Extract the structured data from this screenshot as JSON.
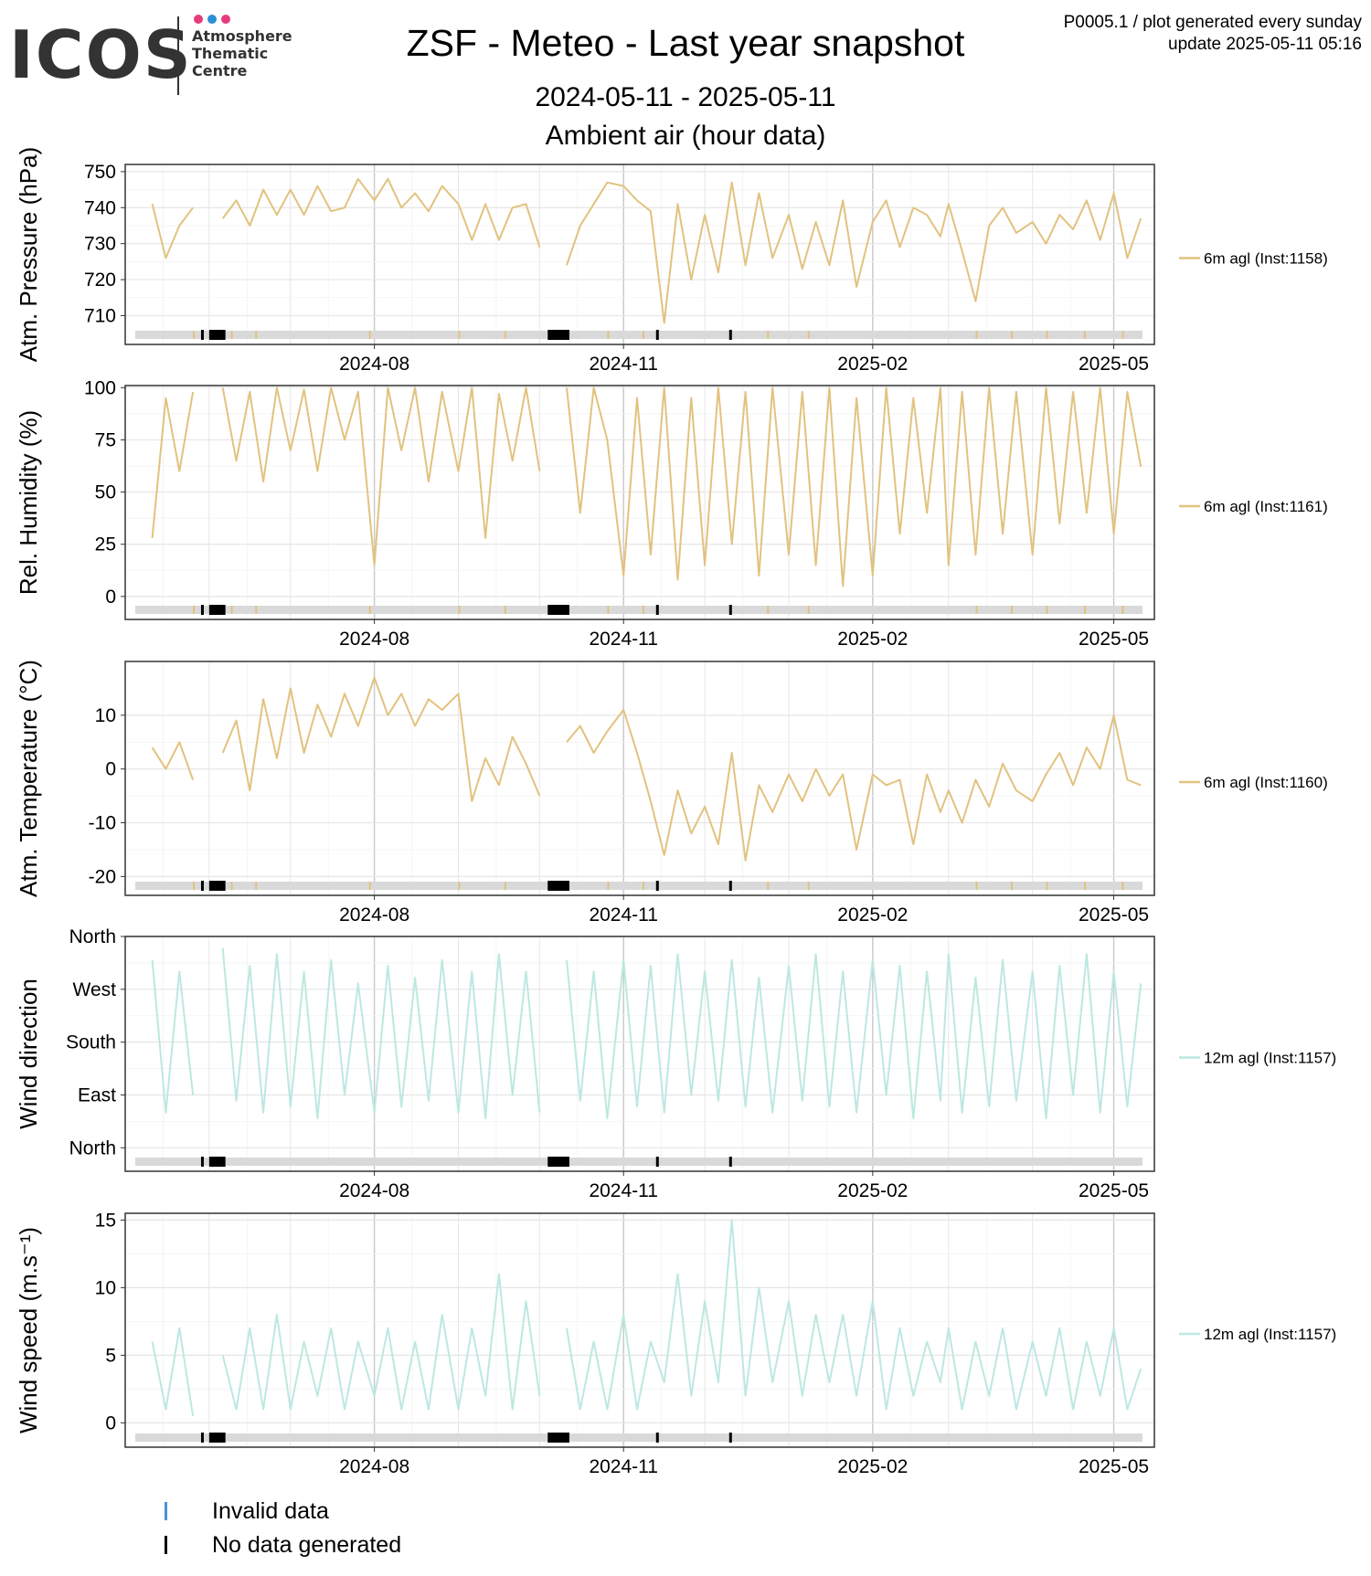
{
  "logo": {
    "word": "ICOS",
    "lines": [
      "Atmosphere",
      "Thematic",
      "Centre"
    ],
    "dot_colors": [
      "#e63b7a",
      "#2a8fd6",
      "#e63b7a"
    ]
  },
  "header": {
    "title": "ZSF - Meteo - Last year snapshot",
    "date_range": "2024-05-11 - 2025-05-11",
    "subtitle": "Ambient air (hour data)",
    "meta_line1": "P0005.1 / plot generated every sunday",
    "meta_line2": "update  2025-05-11 05:16"
  },
  "colors": {
    "sand": "#e2c27f",
    "aqua": "#bce8e1",
    "grid": "#e6e6e6",
    "grid_major": "#c8c8c8",
    "status_bg": "#d9d9d9",
    "invalid": "#4a90d9",
    "nodata": "#000000"
  },
  "legend_bottom": {
    "invalid_label": "Invalid data",
    "nodata_label": "No data generated"
  },
  "chart_data": [
    {
      "type": "line",
      "ylabel": "Atm. Pressure (hPa)",
      "x_ticks": [
        "2024-08",
        "2024-11",
        "2025-02",
        "2025-05"
      ],
      "yticks": [
        710,
        720,
        730,
        740,
        750
      ],
      "ylim": [
        702,
        752
      ],
      "color": "sand",
      "grid": true,
      "legend_position": "right",
      "series": [
        {
          "name": "6m agl (Inst:1158)",
          "x": [
            "2024-05-11",
            "2024-05-16",
            "2024-05-21",
            "2024-05-26",
            "2024-06-01",
            "2024-06-06",
            "2024-06-11",
            "2024-06-16",
            "2024-06-21",
            "2024-06-26",
            "2024-07-01",
            "2024-07-06",
            "2024-07-11",
            "2024-07-16",
            "2024-07-21",
            "2024-07-26",
            "2024-08-01",
            "2024-08-06",
            "2024-08-11",
            "2024-08-16",
            "2024-08-21",
            "2024-08-26",
            "2024-09-01",
            "2024-09-06",
            "2024-09-11",
            "2024-09-16",
            "2024-09-21",
            "2024-09-26",
            "2024-10-01",
            "2024-10-06",
            "2024-10-11",
            "2024-10-16",
            "2024-10-21",
            "2024-10-26",
            "2024-11-01",
            "2024-11-06",
            "2024-11-11",
            "2024-11-16",
            "2024-11-21",
            "2024-11-26",
            "2024-12-01",
            "2024-12-06",
            "2024-12-11",
            "2024-12-16",
            "2024-12-21",
            "2024-12-26",
            "2025-01-01",
            "2025-01-06",
            "2025-01-11",
            "2025-01-16",
            "2025-01-21",
            "2025-01-26",
            "2025-02-01",
            "2025-02-06",
            "2025-02-11",
            "2025-02-16",
            "2025-02-21",
            "2025-02-26",
            "2025-03-01",
            "2025-03-06",
            "2025-03-11",
            "2025-03-16",
            "2025-03-21",
            "2025-03-26",
            "2025-04-01",
            "2025-04-06",
            "2025-04-11",
            "2025-04-16",
            "2025-04-21",
            "2025-04-26",
            "2025-05-01",
            "2025-05-06",
            "2025-05-11"
          ],
          "values": [
            741,
            726,
            735,
            740,
            null,
            737,
            742,
            735,
            745,
            738,
            745,
            738,
            746,
            739,
            740,
            748,
            742,
            748,
            740,
            744,
            739,
            746,
            741,
            731,
            741,
            731,
            740,
            741,
            729,
            null,
            724,
            735,
            741,
            747,
            746,
            742,
            739,
            708,
            741,
            720,
            738,
            722,
            747,
            724,
            744,
            726,
            738,
            723,
            736,
            724,
            742,
            718,
            736,
            742,
            729,
            740,
            738,
            732,
            741,
            728,
            714,
            735,
            740,
            733,
            736,
            730,
            738,
            734,
            742,
            731,
            744,
            726,
            737
          ]
        }
      ]
    },
    {
      "type": "line",
      "ylabel": "Rel. Humidity (%)",
      "x_ticks": [
        "2024-08",
        "2024-11",
        "2025-02",
        "2025-05"
      ],
      "yticks": [
        0,
        25,
        50,
        75,
        100
      ],
      "ylim": [
        -11,
        101
      ],
      "color": "sand",
      "grid": true,
      "legend_position": "right",
      "series": [
        {
          "name": "6m agl (Inst:1161)",
          "x": [
            "2024-05-11",
            "2024-05-16",
            "2024-05-21",
            "2024-05-26",
            "2024-06-01",
            "2024-06-06",
            "2024-06-11",
            "2024-06-16",
            "2024-06-21",
            "2024-06-26",
            "2024-07-01",
            "2024-07-06",
            "2024-07-11",
            "2024-07-16",
            "2024-07-21",
            "2024-07-26",
            "2024-08-01",
            "2024-08-06",
            "2024-08-11",
            "2024-08-16",
            "2024-08-21",
            "2024-08-26",
            "2024-09-01",
            "2024-09-06",
            "2024-09-11",
            "2024-09-16",
            "2024-09-21",
            "2024-09-26",
            "2024-10-01",
            "2024-10-06",
            "2024-10-11",
            "2024-10-16",
            "2024-10-21",
            "2024-10-26",
            "2024-11-01",
            "2024-11-06",
            "2024-11-11",
            "2024-11-16",
            "2024-11-21",
            "2024-11-26",
            "2024-12-01",
            "2024-12-06",
            "2024-12-11",
            "2024-12-16",
            "2024-12-21",
            "2024-12-26",
            "2025-01-01",
            "2025-01-06",
            "2025-01-11",
            "2025-01-16",
            "2025-01-21",
            "2025-01-26",
            "2025-02-01",
            "2025-02-06",
            "2025-02-11",
            "2025-02-16",
            "2025-02-21",
            "2025-02-26",
            "2025-03-01",
            "2025-03-06",
            "2025-03-11",
            "2025-03-16",
            "2025-03-21",
            "2025-03-26",
            "2025-04-01",
            "2025-04-06",
            "2025-04-11",
            "2025-04-16",
            "2025-04-21",
            "2025-04-26",
            "2025-05-01",
            "2025-05-06",
            "2025-05-11"
          ],
          "values": [
            28,
            95,
            60,
            98,
            null,
            100,
            65,
            98,
            55,
            100,
            70,
            99,
            60,
            100,
            75,
            98,
            15,
            100,
            70,
            100,
            55,
            98,
            60,
            100,
            28,
            97,
            65,
            100,
            60,
            null,
            100,
            40,
            100,
            75,
            10,
            95,
            20,
            100,
            8,
            95,
            15,
            100,
            25,
            98,
            10,
            100,
            20,
            98,
            15,
            100,
            5,
            95,
            10,
            100,
            30,
            95,
            40,
            100,
            15,
            98,
            20,
            100,
            30,
            98,
            20,
            100,
            35,
            98,
            40,
            100,
            30,
            98,
            62
          ]
        }
      ]
    },
    {
      "type": "line",
      "ylabel": "Atm. Temperature (°C)",
      "x_ticks": [
        "2024-08",
        "2024-11",
        "2025-02",
        "2025-05"
      ],
      "yticks": [
        -20,
        -10,
        0,
        10
      ],
      "ylim": [
        -23.5,
        20
      ],
      "color": "sand",
      "grid": true,
      "legend_position": "right",
      "series": [
        {
          "name": "6m agl (Inst:1160)",
          "x": [
            "2024-05-11",
            "2024-05-16",
            "2024-05-21",
            "2024-05-26",
            "2024-06-01",
            "2024-06-06",
            "2024-06-11",
            "2024-06-16",
            "2024-06-21",
            "2024-06-26",
            "2024-07-01",
            "2024-07-06",
            "2024-07-11",
            "2024-07-16",
            "2024-07-21",
            "2024-07-26",
            "2024-08-01",
            "2024-08-06",
            "2024-08-11",
            "2024-08-16",
            "2024-08-21",
            "2024-08-26",
            "2024-09-01",
            "2024-09-06",
            "2024-09-11",
            "2024-09-16",
            "2024-09-21",
            "2024-09-26",
            "2024-10-01",
            "2024-10-06",
            "2024-10-11",
            "2024-10-16",
            "2024-10-21",
            "2024-10-26",
            "2024-11-01",
            "2024-11-06",
            "2024-11-11",
            "2024-11-16",
            "2024-11-21",
            "2024-11-26",
            "2024-12-01",
            "2024-12-06",
            "2024-12-11",
            "2024-12-16",
            "2024-12-21",
            "2024-12-26",
            "2025-01-01",
            "2025-01-06",
            "2025-01-11",
            "2025-01-16",
            "2025-01-21",
            "2025-01-26",
            "2025-02-01",
            "2025-02-06",
            "2025-02-11",
            "2025-02-16",
            "2025-02-21",
            "2025-02-26",
            "2025-03-01",
            "2025-03-06",
            "2025-03-11",
            "2025-03-16",
            "2025-03-21",
            "2025-03-26",
            "2025-04-01",
            "2025-04-06",
            "2025-04-11",
            "2025-04-16",
            "2025-04-21",
            "2025-04-26",
            "2025-05-01",
            "2025-05-06",
            "2025-05-11"
          ],
          "values": [
            4,
            0,
            5,
            -2,
            null,
            3,
            9,
            -4,
            13,
            2,
            15,
            3,
            12,
            6,
            14,
            8,
            17,
            10,
            14,
            8,
            13,
            11,
            14,
            -6,
            2,
            -3,
            6,
            1,
            -5,
            null,
            5,
            8,
            3,
            7,
            11,
            3,
            -6,
            -16,
            -4,
            -12,
            -7,
            -14,
            3,
            -17,
            -3,
            -8,
            -1,
            -6,
            0,
            -5,
            -1,
            -15,
            -1,
            -3,
            -2,
            -14,
            -1,
            -8,
            -4,
            -10,
            -2,
            -7,
            1,
            -4,
            -6,
            -1,
            3,
            -3,
            4,
            0,
            10,
            -2,
            -3
          ]
        }
      ]
    },
    {
      "type": "line",
      "ylabel": "Wind direction",
      "x_ticks": [
        "2024-08",
        "2024-11",
        "2025-02",
        "2025-05"
      ],
      "ytick_labels": [
        "North",
        "East",
        "South",
        "West",
        "North"
      ],
      "yticks": [
        0,
        90,
        180,
        270,
        360
      ],
      "ylim": [
        -40,
        360
      ],
      "color": "aqua",
      "grid": true,
      "legend_position": "right",
      "series": [
        {
          "name": "12m agl (Inst:1157)",
          "x": [
            "2024-05-11",
            "2024-05-16",
            "2024-05-21",
            "2024-05-26",
            "2024-06-01",
            "2024-06-06",
            "2024-06-11",
            "2024-06-16",
            "2024-06-21",
            "2024-06-26",
            "2024-07-01",
            "2024-07-06",
            "2024-07-11",
            "2024-07-16",
            "2024-07-21",
            "2024-07-26",
            "2024-08-01",
            "2024-08-06",
            "2024-08-11",
            "2024-08-16",
            "2024-08-21",
            "2024-08-26",
            "2024-09-01",
            "2024-09-06",
            "2024-09-11",
            "2024-09-16",
            "2024-09-21",
            "2024-09-26",
            "2024-10-01",
            "2024-10-06",
            "2024-10-11",
            "2024-10-16",
            "2024-10-21",
            "2024-10-26",
            "2024-11-01",
            "2024-11-06",
            "2024-11-11",
            "2024-11-16",
            "2024-11-21",
            "2024-11-26",
            "2024-12-01",
            "2024-12-06",
            "2024-12-11",
            "2024-12-16",
            "2024-12-21",
            "2024-12-26",
            "2025-01-01",
            "2025-01-06",
            "2025-01-11",
            "2025-01-16",
            "2025-01-21",
            "2025-01-26",
            "2025-02-01",
            "2025-02-06",
            "2025-02-11",
            "2025-02-16",
            "2025-02-21",
            "2025-02-26",
            "2025-03-01",
            "2025-03-06",
            "2025-03-11",
            "2025-03-16",
            "2025-03-21",
            "2025-03-26",
            "2025-04-01",
            "2025-04-06",
            "2025-04-11",
            "2025-04-16",
            "2025-04-21",
            "2025-04-26",
            "2025-05-01",
            "2025-05-06",
            "2025-05-11"
          ],
          "values": [
            320,
            60,
            300,
            90,
            null,
            340,
            80,
            310,
            60,
            330,
            70,
            300,
            50,
            320,
            90,
            280,
            60,
            310,
            70,
            290,
            80,
            320,
            60,
            300,
            50,
            330,
            90,
            300,
            60,
            null,
            320,
            80,
            300,
            50,
            320,
            70,
            310,
            60,
            330,
            90,
            300,
            80,
            320,
            70,
            290,
            60,
            310,
            80,
            330,
            70,
            300,
            60,
            320,
            90,
            310,
            50,
            300,
            80,
            330,
            60,
            290,
            70,
            320,
            80,
            300,
            50,
            310,
            90,
            330,
            60,
            300,
            70,
            280
          ]
        }
      ]
    },
    {
      "type": "line",
      "ylabel": "Wind speed (m.s⁻¹)",
      "x_ticks": [
        "2024-08",
        "2024-11",
        "2025-02",
        "2025-05"
      ],
      "yticks": [
        0,
        5,
        10,
        15
      ],
      "ylim": [
        -1.8,
        15.5
      ],
      "color": "aqua",
      "grid": true,
      "legend_position": "right",
      "series": [
        {
          "name": "12m agl (Inst:1157)",
          "x": [
            "2024-05-11",
            "2024-05-16",
            "2024-05-21",
            "2024-05-26",
            "2024-06-01",
            "2024-06-06",
            "2024-06-11",
            "2024-06-16",
            "2024-06-21",
            "2024-06-26",
            "2024-07-01",
            "2024-07-06",
            "2024-07-11",
            "2024-07-16",
            "2024-07-21",
            "2024-07-26",
            "2024-08-01",
            "2024-08-06",
            "2024-08-11",
            "2024-08-16",
            "2024-08-21",
            "2024-08-26",
            "2024-09-01",
            "2024-09-06",
            "2024-09-11",
            "2024-09-16",
            "2024-09-21",
            "2024-09-26",
            "2024-10-01",
            "2024-10-06",
            "2024-10-11",
            "2024-10-16",
            "2024-10-21",
            "2024-10-26",
            "2024-11-01",
            "2024-11-06",
            "2024-11-11",
            "2024-11-16",
            "2024-11-21",
            "2024-11-26",
            "2024-12-01",
            "2024-12-06",
            "2024-12-11",
            "2024-12-16",
            "2024-12-21",
            "2024-12-26",
            "2025-01-01",
            "2025-01-06",
            "2025-01-11",
            "2025-01-16",
            "2025-01-21",
            "2025-01-26",
            "2025-02-01",
            "2025-02-06",
            "2025-02-11",
            "2025-02-16",
            "2025-02-21",
            "2025-02-26",
            "2025-03-01",
            "2025-03-06",
            "2025-03-11",
            "2025-03-16",
            "2025-03-21",
            "2025-03-26",
            "2025-04-01",
            "2025-04-06",
            "2025-04-11",
            "2025-04-16",
            "2025-04-21",
            "2025-04-26",
            "2025-05-01",
            "2025-05-06",
            "2025-05-11"
          ],
          "values": [
            6,
            1,
            7,
            0.5,
            null,
            5,
            1,
            7,
            1,
            8,
            1,
            6,
            2,
            7,
            1,
            6,
            2,
            7,
            1,
            6,
            1,
            8,
            1,
            7,
            2,
            11,
            1,
            9,
            2,
            null,
            7,
            1,
            6,
            1,
            8,
            1,
            6,
            3,
            11,
            2,
            9,
            3,
            15,
            2,
            10,
            3,
            9,
            2,
            8,
            3,
            8,
            2,
            9,
            1,
            7,
            2,
            6,
            3,
            7,
            1,
            6,
            2,
            7,
            1,
            6,
            2,
            7,
            1,
            6,
            2,
            7,
            1,
            4
          ]
        }
      ]
    }
  ],
  "status_bars": {
    "nodata": [
      [
        "2024-05-29",
        "2024-05-30"
      ],
      [
        "2024-06-01",
        "2024-06-07"
      ],
      [
        "2024-10-04",
        "2024-10-12"
      ],
      [
        "2024-11-13",
        "2024-11-14"
      ],
      [
        "2024-12-10",
        "2024-12-11"
      ]
    ],
    "flag_ticks": [
      "2024-05-26",
      "2024-06-09",
      "2024-06-18",
      "2024-07-30",
      "2024-09-01",
      "2024-09-18",
      "2024-10-26",
      "2024-11-08",
      "2024-12-24",
      "2025-01-08",
      "2025-03-11",
      "2025-03-24",
      "2025-04-06",
      "2025-04-20",
      "2025-05-04"
    ]
  }
}
